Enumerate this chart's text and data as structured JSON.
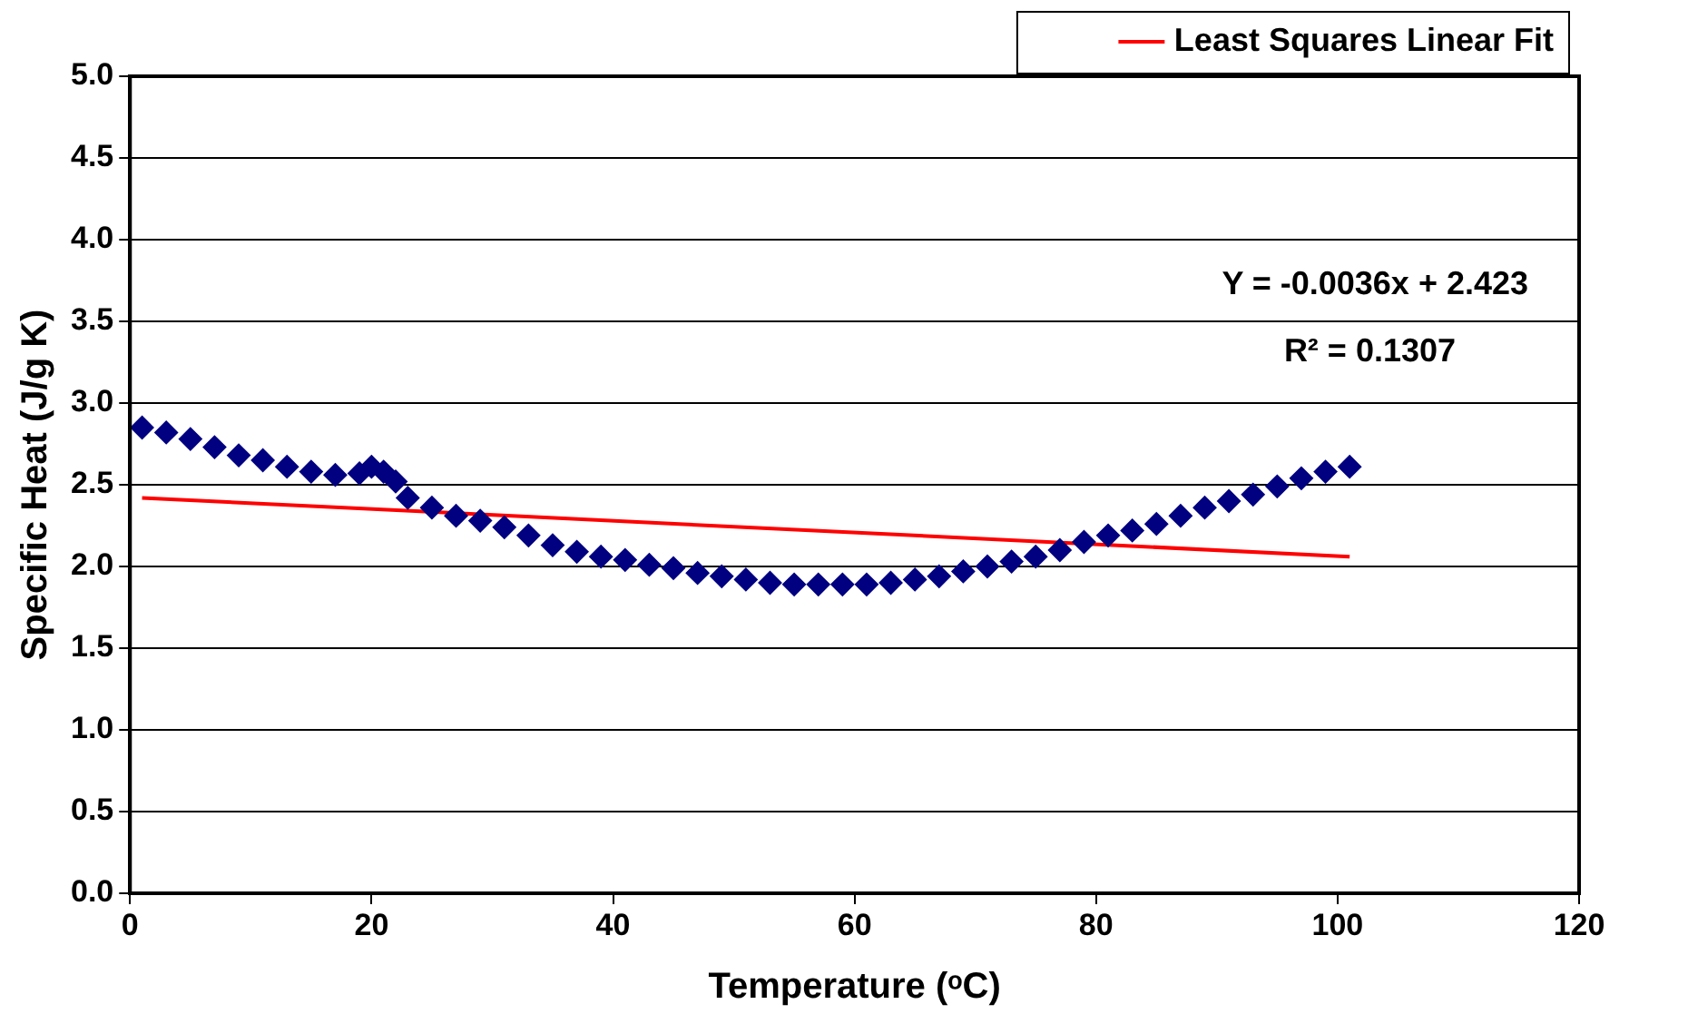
{
  "chart_data": {
    "type": "scatter",
    "xlabel": "Temperature (ᵒC)",
    "ylabel": "Specific Heat (J/g K)",
    "xlim": [
      0,
      120
    ],
    "xticks": [
      0,
      20,
      40,
      60,
      80,
      100,
      120
    ],
    "ylim": [
      0,
      5
    ],
    "yticks": [
      {
        "value": 0,
        "label": "0.0"
      },
      {
        "value": 0.5,
        "label": "0.5"
      },
      {
        "value": 1,
        "label": "1.0"
      },
      {
        "value": 1.5,
        "label": "1.5"
      },
      {
        "value": 2,
        "label": "2.0"
      },
      {
        "value": 2.5,
        "label": "2.5"
      },
      {
        "value": 3,
        "label": "3.0"
      },
      {
        "value": 3.5,
        "label": "3.5"
      },
      {
        "value": 4,
        "label": "4.0"
      },
      {
        "value": 4.5,
        "label": "4.5"
      },
      {
        "value": 5,
        "label": "5.0"
      }
    ],
    "grid": "y",
    "legend": "top right",
    "marker": "diamond",
    "annotations": [
      "Y = -0.0036x + 2.423",
      "R² = 0.1307"
    ],
    "series": [
      {
        "color": "#000080",
        "x": [
          1,
          3,
          5,
          7,
          9,
          11,
          13,
          15,
          17,
          19,
          20,
          21,
          22,
          23,
          25,
          27,
          29,
          31,
          33,
          35,
          37,
          39,
          41,
          43,
          45,
          47,
          49,
          51,
          53,
          55,
          57,
          59,
          61,
          63,
          65,
          67,
          69,
          71,
          73,
          75,
          77,
          79,
          81,
          83,
          85,
          87,
          89,
          91,
          93,
          95,
          97,
          99,
          101
        ],
        "values": [
          2.85,
          2.82,
          2.78,
          2.73,
          2.68,
          2.65,
          2.61,
          2.58,
          2.56,
          2.57,
          2.61,
          2.58,
          2.52,
          2.42,
          2.36,
          2.31,
          2.28,
          2.24,
          2.19,
          2.13,
          2.09,
          2.06,
          2.04,
          2.01,
          1.99,
          1.96,
          1.94,
          1.92,
          1.9,
          1.89,
          1.89,
          1.89,
          1.89,
          1.9,
          1.92,
          1.94,
          1.97,
          2.0,
          2.03,
          2.06,
          2.1,
          2.15,
          2.19,
          2.22,
          2.26,
          2.31,
          2.36,
          2.4,
          2.44,
          2.49,
          2.54,
          2.58,
          2.61
        ]
      },
      {
        "type": "line",
        "name": "Least Squares Linear Fit",
        "color": "#ff0000",
        "marker": "none",
        "x": [
          1,
          101
        ],
        "values": [
          2.42,
          2.06
        ]
      }
    ]
  }
}
